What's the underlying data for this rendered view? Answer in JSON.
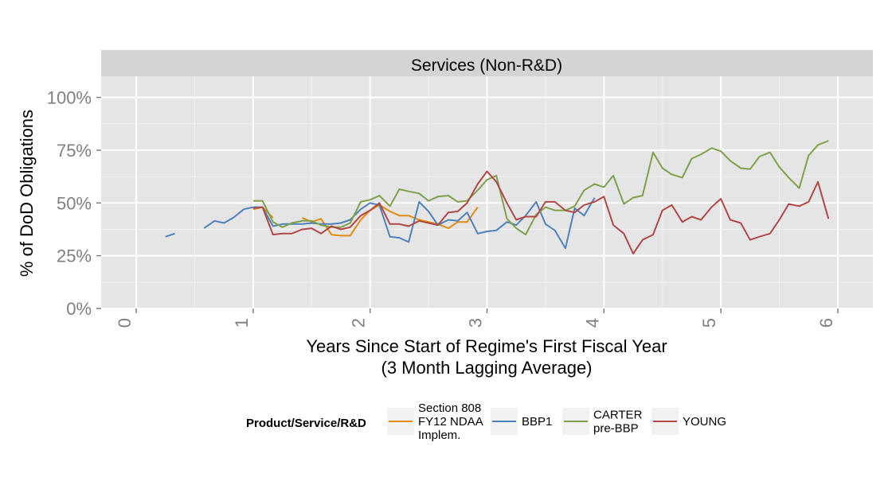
{
  "chart_data": {
    "type": "line",
    "facet_title": "Services (Non-R&D)",
    "xlabel": "Years Since Start of Regime's First Fiscal Year",
    "xlabel_sub": "(3 Month Lagging Average)",
    "ylabel": "% of DoD Obligations",
    "xlim": [
      -0.3,
      6.3
    ],
    "ylim": [
      0,
      1.1
    ],
    "x_ticks": [
      0,
      1,
      2,
      3,
      4,
      5,
      6
    ],
    "x_tick_labels": [
      "0",
      "1",
      "2",
      "3",
      "4",
      "5",
      "6"
    ],
    "y_ticks": [
      0,
      0.25,
      0.5,
      0.75,
      1.0
    ],
    "y_tick_labels": [
      "0%",
      "25%",
      "50%",
      "75%",
      "100%"
    ],
    "grid": true,
    "legend": {
      "title": "Product/Service/R&D",
      "placement": "bottom",
      "entries": [
        {
          "label_lines": [
            "Section 808",
            "FY12 NDAA",
            "Implem."
          ],
          "color": "#e08b0b"
        },
        {
          "label_lines": [
            "BBP1"
          ],
          "color": "#4f81bd"
        },
        {
          "label_lines": [
            "CARTER",
            "pre-BBP"
          ],
          "color": "#7ea14a"
        },
        {
          "label_lines": [
            "YOUNG"
          ],
          "color": "#b14845"
        }
      ]
    },
    "series": [
      {
        "name": "Section 808 FY12 NDAA Implem.",
        "color": "#e08b0b",
        "segments": [
          [
            [
              1.0,
              0.47
            ],
            [
              1.08,
              0.48
            ],
            [
              1.17,
              0.43
            ]
          ],
          [
            [
              1.42,
              0.43
            ],
            [
              1.5,
              0.41
            ],
            [
              1.58,
              0.425
            ],
            [
              1.67,
              0.35
            ],
            [
              1.75,
              0.345
            ],
            [
              1.83,
              0.345
            ],
            [
              1.92,
              0.42
            ],
            [
              2.0,
              0.465
            ],
            [
              2.08,
              0.49
            ],
            [
              2.17,
              0.46
            ],
            [
              2.25,
              0.44
            ],
            [
              2.33,
              0.44
            ],
            [
              2.42,
              0.42
            ],
            [
              2.5,
              0.41
            ],
            [
              2.58,
              0.4
            ],
            [
              2.67,
              0.38
            ],
            [
              2.75,
              0.41
            ],
            [
              2.83,
              0.41
            ],
            [
              2.92,
              0.48
            ]
          ]
        ]
      },
      {
        "name": "BBP1",
        "color": "#4f81bd",
        "segments": [
          [
            [
              0.25,
              0.34
            ],
            [
              0.33,
              0.355
            ]
          ],
          [
            [
              0.58,
              0.38
            ],
            [
              0.67,
              0.415
            ],
            [
              0.75,
              0.405
            ],
            [
              0.83,
              0.43
            ],
            [
              0.92,
              0.47
            ],
            [
              1.0,
              0.48
            ],
            [
              1.08,
              0.48
            ],
            [
              1.17,
              0.39
            ],
            [
              1.25,
              0.4
            ],
            [
              1.33,
              0.4
            ],
            [
              1.42,
              0.4
            ],
            [
              1.5,
              0.405
            ],
            [
              1.58,
              0.4
            ],
            [
              1.67,
              0.4
            ],
            [
              1.75,
              0.405
            ],
            [
              1.83,
              0.42
            ],
            [
              1.92,
              0.47
            ],
            [
              2.0,
              0.5
            ],
            [
              2.08,
              0.49
            ],
            [
              2.17,
              0.34
            ],
            [
              2.25,
              0.335
            ],
            [
              2.33,
              0.315
            ],
            [
              2.42,
              0.505
            ],
            [
              2.5,
              0.46
            ],
            [
              2.58,
              0.395
            ],
            [
              2.67,
              0.42
            ],
            [
              2.75,
              0.415
            ],
            [
              2.83,
              0.455
            ],
            [
              2.92,
              0.355
            ],
            [
              3.0,
              0.365
            ],
            [
              3.08,
              0.37
            ],
            [
              3.17,
              0.41
            ],
            [
              3.25,
              0.395
            ],
            [
              3.33,
              0.44
            ],
            [
              3.42,
              0.505
            ],
            [
              3.5,
              0.4
            ],
            [
              3.58,
              0.37
            ],
            [
              3.67,
              0.285
            ],
            [
              3.75,
              0.475
            ],
            [
              3.83,
              0.44
            ],
            [
              3.92,
              0.525
            ]
          ]
        ]
      },
      {
        "name": "CARTER pre-BBP",
        "color": "#7ea14a",
        "segments": [
          [
            [
              1.0,
              0.51
            ],
            [
              1.08,
              0.51
            ],
            [
              1.17,
              0.41
            ],
            [
              1.25,
              0.385
            ],
            [
              1.33,
              0.405
            ],
            [
              1.42,
              0.415
            ],
            [
              1.5,
              0.415
            ],
            [
              1.58,
              0.395
            ],
            [
              1.67,
              0.385
            ],
            [
              1.75,
              0.385
            ],
            [
              1.83,
              0.405
            ],
            [
              1.92,
              0.505
            ],
            [
              2.0,
              0.515
            ],
            [
              2.08,
              0.535
            ],
            [
              2.17,
              0.485
            ],
            [
              2.25,
              0.565
            ],
            [
              2.33,
              0.555
            ],
            [
              2.42,
              0.545
            ],
            [
              2.5,
              0.51
            ],
            [
              2.58,
              0.53
            ],
            [
              2.67,
              0.535
            ],
            [
              2.75,
              0.505
            ],
            [
              2.83,
              0.51
            ],
            [
              2.92,
              0.56
            ],
            [
              3.0,
              0.61
            ],
            [
              3.08,
              0.63
            ],
            [
              3.17,
              0.425
            ],
            [
              3.25,
              0.38
            ],
            [
              3.33,
              0.35
            ],
            [
              3.42,
              0.445
            ],
            [
              3.5,
              0.48
            ],
            [
              3.58,
              0.465
            ],
            [
              3.67,
              0.465
            ],
            [
              3.75,
              0.485
            ],
            [
              3.83,
              0.56
            ],
            [
              3.92,
              0.59
            ],
            [
              4.0,
              0.575
            ],
            [
              4.08,
              0.63
            ],
            [
              4.17,
              0.495
            ],
            [
              4.25,
              0.525
            ],
            [
              4.33,
              0.535
            ],
            [
              4.42,
              0.74
            ],
            [
              4.5,
              0.665
            ],
            [
              4.58,
              0.635
            ],
            [
              4.67,
              0.62
            ],
            [
              4.75,
              0.71
            ],
            [
              4.83,
              0.73
            ],
            [
              4.92,
              0.76
            ],
            [
              5.0,
              0.745
            ],
            [
              5.08,
              0.7
            ],
            [
              5.17,
              0.665
            ],
            [
              5.25,
              0.66
            ],
            [
              5.33,
              0.72
            ],
            [
              5.42,
              0.74
            ],
            [
              5.5,
              0.67
            ],
            [
              5.58,
              0.62
            ],
            [
              5.67,
              0.57
            ],
            [
              5.75,
              0.725
            ],
            [
              5.83,
              0.775
            ],
            [
              5.92,
              0.795
            ]
          ]
        ]
      },
      {
        "name": "YOUNG",
        "color": "#b14845",
        "segments": [
          [
            [
              1.0,
              0.475
            ],
            [
              1.08,
              0.48
            ],
            [
              1.17,
              0.35
            ],
            [
              1.25,
              0.355
            ],
            [
              1.33,
              0.355
            ],
            [
              1.42,
              0.375
            ],
            [
              1.5,
              0.38
            ],
            [
              1.58,
              0.355
            ],
            [
              1.67,
              0.39
            ],
            [
              1.75,
              0.375
            ],
            [
              1.83,
              0.385
            ],
            [
              1.92,
              0.44
            ],
            [
              2.0,
              0.465
            ],
            [
              2.08,
              0.5
            ],
            [
              2.17,
              0.4
            ],
            [
              2.25,
              0.4
            ],
            [
              2.33,
              0.39
            ],
            [
              2.42,
              0.415
            ],
            [
              2.5,
              0.405
            ],
            [
              2.58,
              0.395
            ],
            [
              2.67,
              0.455
            ],
            [
              2.75,
              0.46
            ],
            [
              2.83,
              0.5
            ],
            [
              2.92,
              0.59
            ],
            [
              3.0,
              0.65
            ],
            [
              3.08,
              0.6
            ],
            [
              3.17,
              0.5
            ],
            [
              3.25,
              0.42
            ],
            [
              3.33,
              0.435
            ],
            [
              3.42,
              0.435
            ],
            [
              3.5,
              0.505
            ],
            [
              3.58,
              0.505
            ],
            [
              3.67,
              0.465
            ],
            [
              3.75,
              0.455
            ],
            [
              3.83,
              0.49
            ],
            [
              3.92,
              0.505
            ],
            [
              4.0,
              0.53
            ],
            [
              4.08,
              0.395
            ],
            [
              4.17,
              0.355
            ],
            [
              4.25,
              0.26
            ],
            [
              4.33,
              0.325
            ],
            [
              4.42,
              0.35
            ],
            [
              4.5,
              0.465
            ],
            [
              4.58,
              0.49
            ],
            [
              4.67,
              0.41
            ],
            [
              4.75,
              0.435
            ],
            [
              4.83,
              0.42
            ],
            [
              4.92,
              0.48
            ],
            [
              5.0,
              0.52
            ],
            [
              5.08,
              0.42
            ],
            [
              5.17,
              0.405
            ],
            [
              5.25,
              0.325
            ],
            [
              5.33,
              0.34
            ],
            [
              5.42,
              0.355
            ],
            [
              5.5,
              0.42
            ],
            [
              5.58,
              0.495
            ],
            [
              5.67,
              0.485
            ],
            [
              5.75,
              0.505
            ],
            [
              5.83,
              0.6
            ],
            [
              5.92,
              0.425
            ]
          ]
        ]
      }
    ]
  }
}
